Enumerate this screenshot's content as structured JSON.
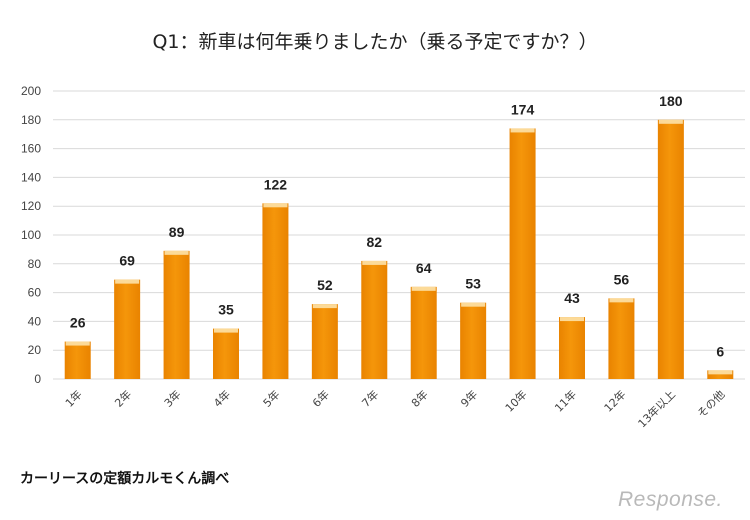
{
  "chart_data": {
    "type": "bar",
    "title": "Q1：新車は何年乗りましたか（乗る予定ですか？）",
    "categories": [
      "1年",
      "2年",
      "3年",
      "4年",
      "5年",
      "6年",
      "7年",
      "8年",
      "9年",
      "10年",
      "11年",
      "12年",
      "13年以上",
      "その他"
    ],
    "values": [
      26,
      69,
      89,
      35,
      122,
      52,
      82,
      64,
      53,
      174,
      43,
      56,
      180,
      6
    ],
    "yticks": [
      0,
      20,
      40,
      60,
      80,
      100,
      120,
      140,
      160,
      180,
      200
    ],
    "ylim": [
      0,
      200
    ],
    "xlabel": "",
    "ylabel": "",
    "grid": true,
    "bar_color": "#f5960a",
    "bar_highlight": "#fde2a8"
  },
  "footer": {
    "source": "カーリースの定額カルモくん調べ",
    "logo": "Response."
  }
}
